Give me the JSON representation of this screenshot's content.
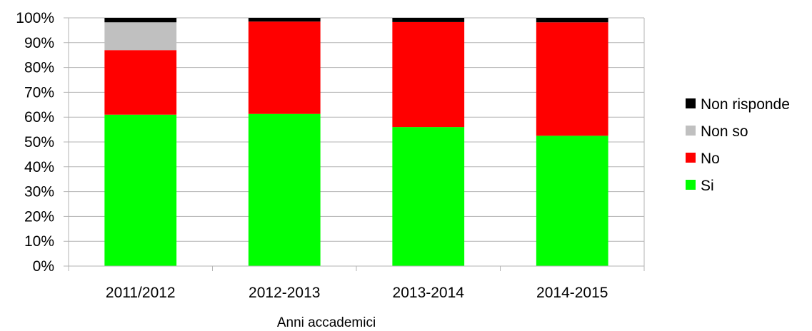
{
  "chart_data": {
    "type": "bar",
    "stacked": true,
    "percent": true,
    "categories": [
      "2011/2012",
      "2012-2013",
      "2013-2014",
      "2014-2015"
    ],
    "series": [
      {
        "name": "Si",
        "color": "#00ff00",
        "values": [
          61,
          61.3,
          56,
          52.5
        ]
      },
      {
        "name": "No",
        "color": "#ff0000",
        "values": [
          26,
          37.2,
          42.3,
          45.7
        ]
      },
      {
        "name": "Non so",
        "color": "#c0c0c0",
        "values": [
          11.2,
          0,
          0,
          0
        ]
      },
      {
        "name": "Non risponde",
        "color": "#000000",
        "values": [
          1.8,
          1.5,
          1.7,
          1.8
        ]
      }
    ],
    "xlabel": "Anni accademici",
    "ylabel": "",
    "ylim": [
      0,
      100
    ],
    "yticks": [
      "0%",
      "10%",
      "20%",
      "30%",
      "40%",
      "50%",
      "60%",
      "70%",
      "80%",
      "90%",
      "100%"
    ],
    "grid": "horizontal",
    "legend_position": "right",
    "legend_order": [
      "Non risponde",
      "Non so",
      "No",
      "Si"
    ]
  }
}
